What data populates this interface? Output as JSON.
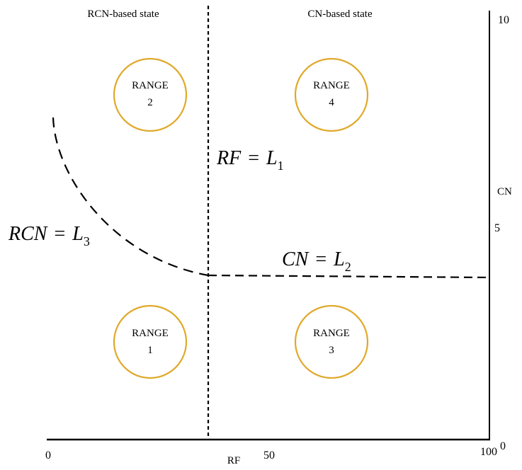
{
  "headers": {
    "left": "RCN-based state",
    "right": "CN-based state"
  },
  "axes": {
    "x_label": "RF",
    "x_ticks": [
      "0",
      "50",
      "100"
    ],
    "y_label": "CN",
    "y_ticks": [
      "10",
      "5",
      "0"
    ]
  },
  "ranges": [
    {
      "line1": "RANGE",
      "line2": "1"
    },
    {
      "line1": "RANGE",
      "line2": "2"
    },
    {
      "line1": "RANGE",
      "line2": "3"
    },
    {
      "line1": "RANGE",
      "line2": "4"
    }
  ],
  "boundaries": {
    "rf": {
      "lhs": "RF",
      "rhs": "L",
      "sub": "1"
    },
    "cn": {
      "lhs": "CN",
      "rhs": "L",
      "sub": "2"
    },
    "rcn": {
      "lhs": "RCN",
      "rhs": "L",
      "sub": "3"
    }
  },
  "colors": {
    "range_circle": "#E0A92B",
    "line": "#000000"
  }
}
